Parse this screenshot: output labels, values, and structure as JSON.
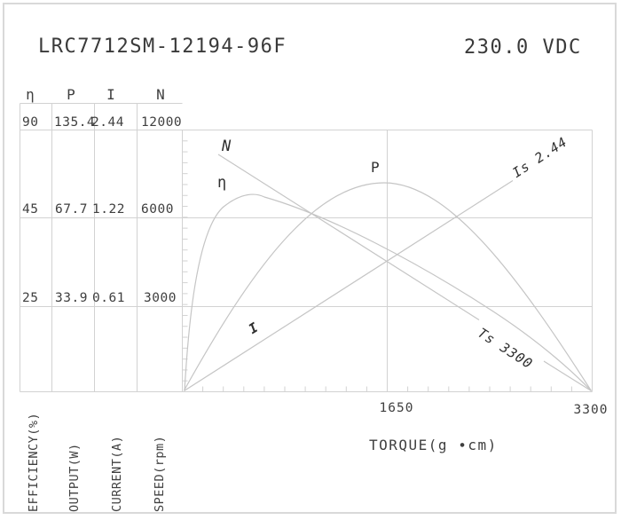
{
  "page": {
    "title_left": "LRC7712SM-12194-96F",
    "title_right": "230.0 VDC"
  },
  "colors": {
    "grid_line": "#d2d2d2",
    "curve_line": "#c5c5c5",
    "text": "#3f3f3f",
    "curve_label_text": "#2f2f2f",
    "frame_border": "#d9d9d9"
  },
  "table": {
    "headers": [
      "η",
      "P",
      "I",
      "N"
    ],
    "rows": [
      [
        "90",
        "135.4",
        "2.44",
        "12000"
      ],
      [
        "45",
        "67.7",
        "1.22",
        "6000"
      ],
      [
        "25",
        "33.9",
        "0.61",
        "3000"
      ]
    ],
    "axis_titles": [
      "EFFICIENCY(%)",
      "OUTPUT(W)",
      "CURRENT(A)",
      "SPEED(rpm)"
    ]
  },
  "chart_data": {
    "type": "line",
    "title": "LRC7712SM-12194-96F",
    "subtitle": "230.0 VDC",
    "xlabel": "TORQUE(g ∙cm)",
    "x_tick_labels": [
      "1650",
      "3300"
    ],
    "xlim": [
      0,
      3300
    ],
    "grid": "partial (vertical line at 1650; horizontal lines at table row levels)",
    "legend_position": "inline curve labels",
    "y_axes": [
      {
        "symbol": "η",
        "name": "EFFICIENCY(%)",
        "gridline_values_top_to_bottom": [
          90,
          45,
          25
        ]
      },
      {
        "symbol": "P",
        "name": "OUTPUT(W)",
        "gridline_values_top_to_bottom": [
          135.4,
          67.7,
          33.9
        ]
      },
      {
        "symbol": "I",
        "name": "CURRENT(A)",
        "gridline_values_top_to_bottom": [
          2.44,
          1.22,
          0.61
        ]
      },
      {
        "symbol": "N",
        "name": "SPEED(rpm)",
        "gridline_values_top_to_bottom": [
          12000,
          6000,
          3000
        ]
      }
    ],
    "series": [
      {
        "name": "N",
        "label": "N",
        "shape": "straight line, descending",
        "points": [
          [
            280,
            10700
          ],
          [
            3300,
            0
          ]
        ],
        "approx": true,
        "note": "speed falls linearly to 0 at stall torque 3300 g·cm"
      },
      {
        "name": "P",
        "label": "P",
        "shape": "parabolic arch",
        "points": [
          [
            0,
            0
          ],
          [
            1650,
            90
          ],
          [
            3300,
            0
          ]
        ],
        "approx": true,
        "note": "output power peaks near mid torque"
      },
      {
        "name": "I",
        "label": "I",
        "shape": "straight line, ascending",
        "points": [
          [
            0,
            0
          ],
          [
            3300,
            2.44
          ]
        ],
        "approx": true,
        "note": "current rises linearly to stall current 2.44 A"
      },
      {
        "name": "η",
        "label": "η",
        "shape": "steep rise then slow decline",
        "points": [
          [
            0,
            0
          ],
          [
            650,
            53
          ],
          [
            3300,
            0
          ]
        ],
        "approx": true,
        "note": "efficiency peaks at low torque then declines to 0 at stall"
      }
    ],
    "annotations": [
      {
        "text": "Is 2.44",
        "meaning": "stall current 2.44 A",
        "rotation_deg": -33
      },
      {
        "text": "Ts 3300",
        "meaning": "stall torque 3300 g·cm",
        "rotation_deg": 33
      }
    ]
  },
  "labels": {
    "curve_n": "N",
    "curve_eta": "η",
    "curve_p": "P",
    "curve_i": "I",
    "stall_current": "Is 2.44",
    "stall_torque": "Ts 3300",
    "xtick_mid": "1650",
    "xtick_end": "3300",
    "xaxis": "TORQUE(g ∙cm)"
  }
}
